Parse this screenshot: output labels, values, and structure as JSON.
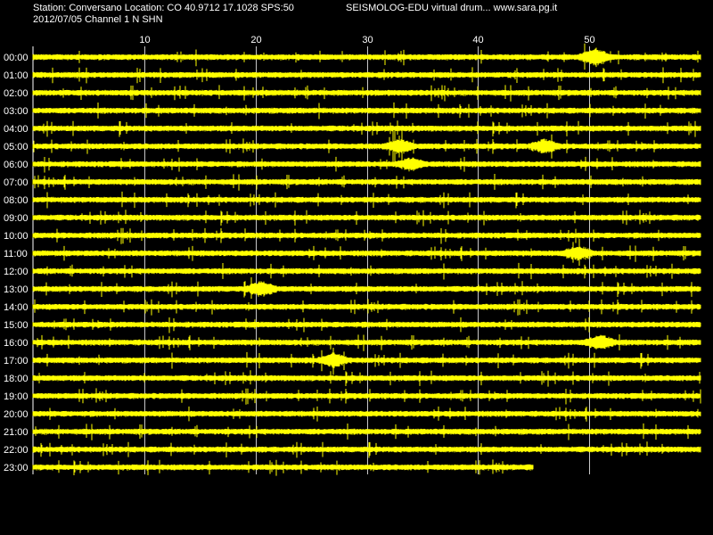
{
  "header": {
    "station_line": "Station: Conversano Location: CO 40.9712 17.1028 SPS:50",
    "date_line": "2012/07/05  Channel 1 N SHN",
    "title_line": "SEISMOLOG-EDU virtual drum... www.sara.pg.it"
  },
  "chart_data": {
    "type": "line",
    "title": "",
    "xlabel": "",
    "ylabel": "",
    "x_range": [
      0,
      60
    ],
    "x_ticks": [
      10,
      20,
      30,
      40,
      50
    ],
    "x_tick_labels": [
      "10",
      "20",
      "30",
      "40",
      "50"
    ],
    "grid": true,
    "colors": {
      "background": "#000000",
      "trace": "#ffff00",
      "grid": "#ffffff",
      "text": "#ffffff"
    },
    "hours": [
      "00:00",
      "01:00",
      "02:00",
      "03:00",
      "04:00",
      "05:00",
      "06:00",
      "07:00",
      "08:00",
      "09:00",
      "10:00",
      "11:00",
      "12:00",
      "13:00",
      "14:00",
      "15:00",
      "16:00",
      "17:00",
      "18:00",
      "19:00",
      "20:00",
      "21:00",
      "22:00",
      "23:00"
    ],
    "hour_end_minute": [
      60,
      60,
      60,
      60,
      60,
      60,
      60,
      60,
      60,
      60,
      60,
      60,
      60,
      60,
      60,
      60,
      60,
      60,
      60,
      60,
      60,
      60,
      60,
      45
    ],
    "bursts": [
      {
        "hour": "00:00",
        "minute": 50.5,
        "amplitude": 2.5
      },
      {
        "hour": "05:00",
        "minute": 33,
        "amplitude": 1.8
      },
      {
        "hour": "05:00",
        "minute": 46,
        "amplitude": 1.8
      },
      {
        "hour": "06:00",
        "minute": 34,
        "amplitude": 1.5
      },
      {
        "hour": "11:00",
        "minute": 49,
        "amplitude": 2.0
      },
      {
        "hour": "13:00",
        "minute": 20.5,
        "amplitude": 2.0
      },
      {
        "hour": "16:00",
        "minute": 51,
        "amplitude": 2.0
      },
      {
        "hour": "17:00",
        "minute": 27,
        "amplitude": 1.8
      }
    ]
  }
}
